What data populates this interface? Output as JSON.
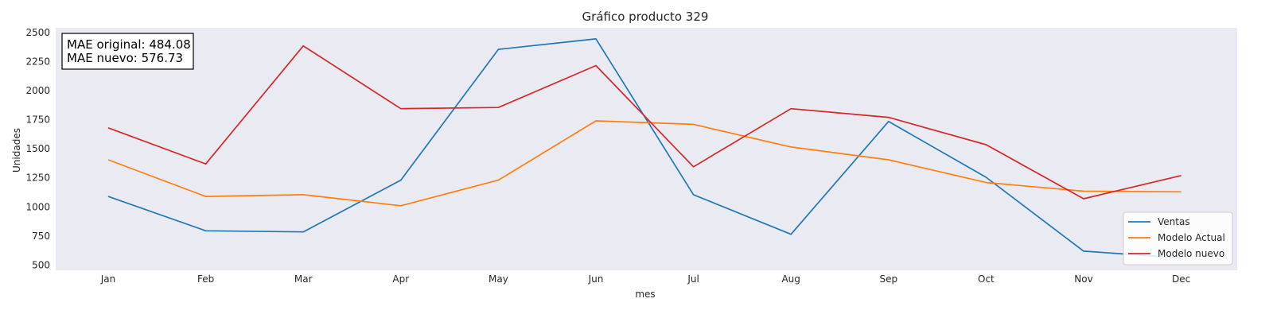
{
  "chart_data": {
    "type": "line",
    "title": "Gráfico producto 329",
    "xlabel": "mes",
    "ylabel": "Unidades",
    "categories": [
      "Jan",
      "Feb",
      "Mar",
      "Apr",
      "May",
      "Jun",
      "Jul",
      "Aug",
      "Sep",
      "Oct",
      "Nov",
      "Dec"
    ],
    "yticks": [
      500,
      750,
      1000,
      1250,
      1500,
      1750,
      2000,
      2250,
      2500
    ],
    "ylim": [
      455,
      2540
    ],
    "grid": false,
    "legend_position": "bottom-right",
    "background_color": "#eaeaf2",
    "annotation": [
      "MAE original: 484.08",
      "MAE nuevo: 576.73"
    ],
    "series": [
      {
        "name": "Ventas",
        "color": "#1f77b4",
        "values": [
          1090,
          795,
          785,
          1230,
          2355,
          2445,
          1105,
          765,
          1735,
          1255,
          620,
          560
        ]
      },
      {
        "name": "Modelo Actual",
        "color": "#ff7f0e",
        "values": [
          1405,
          1090,
          1105,
          1010,
          1230,
          1740,
          1710,
          1515,
          1405,
          1210,
          1135,
          1130
        ]
      },
      {
        "name": "Modelo nuevo",
        "color": "#d62728",
        "values": [
          1680,
          1370,
          2385,
          1845,
          1855,
          2215,
          1345,
          1845,
          1770,
          1535,
          1070,
          1270
        ]
      }
    ]
  }
}
